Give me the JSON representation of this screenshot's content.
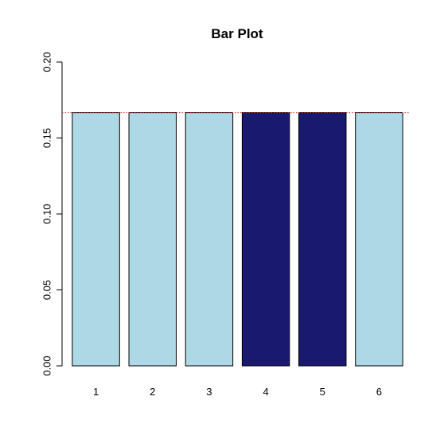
{
  "chart_data": {
    "type": "bar",
    "title": "Bar Plot",
    "xlabel": "",
    "ylabel": "",
    "categories": [
      "1",
      "2",
      "3",
      "4",
      "5",
      "6"
    ],
    "values": [
      0.1667,
      0.1667,
      0.1667,
      0.1667,
      0.1667,
      0.1667
    ],
    "ylim": [
      0,
      0.2
    ],
    "yticks": [
      "0.00",
      "0.05",
      "0.10",
      "0.15",
      "0.20"
    ],
    "reference_line": {
      "y": 0.1667,
      "color": "#cc3333",
      "style": "dotted"
    },
    "bar_colors": [
      "#add8e6",
      "#add8e6",
      "#add8e6",
      "#191970",
      "#191970",
      "#add8e6"
    ],
    "grid": false,
    "legend": "none"
  }
}
